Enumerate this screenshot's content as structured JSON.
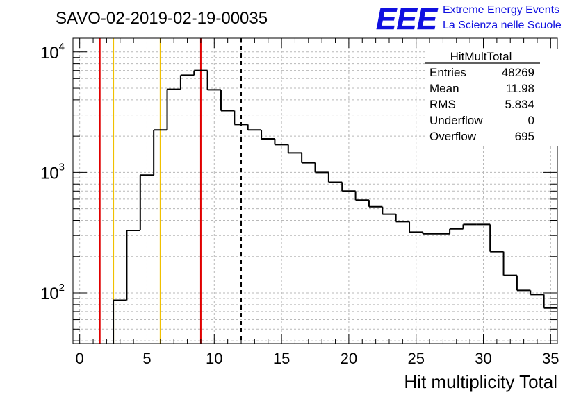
{
  "header": {
    "title": "SAVO-02-2019-02-19-00035",
    "logo_text": "EEE",
    "logo_line1": "Extreme Energy Events",
    "logo_line2": "La Scienza nelle Scuole",
    "logo_color": "#1010e0"
  },
  "stats": {
    "title": "HitMultTotal",
    "rows": [
      {
        "label": "Entries",
        "value": "48269"
      },
      {
        "label": "Mean",
        "value": "11.98"
      },
      {
        "label": "RMS",
        "value": "5.834"
      },
      {
        "label": "Underflow",
        "value": "0"
      },
      {
        "label": "Overflow",
        "value": "695"
      }
    ]
  },
  "chart_data": {
    "type": "histogram",
    "xlabel": "Hit multiplicity Total",
    "ylabel": "",
    "xlim": [
      -0.5,
      35.5
    ],
    "ylim": [
      38,
      13000
    ],
    "y_scale": "log",
    "grid": true,
    "x_ticks": [
      0,
      5,
      10,
      15,
      20,
      25,
      30,
      35
    ],
    "x_tick_labels": [
      "0",
      "5",
      "10",
      "15",
      "20",
      "25",
      "30",
      "35"
    ],
    "y_ticks": [
      100,
      1000,
      10000
    ],
    "y_tick_labels": [
      {
        "base": "10",
        "exp": "2"
      },
      {
        "base": "10",
        "exp": "3"
      },
      {
        "base": "10",
        "exp": "4"
      }
    ],
    "bin_edges": [
      -0.5,
      0.5,
      1.5,
      2.5,
      3.5,
      4.5,
      5.5,
      6.5,
      7.5,
      8.5,
      9.5,
      10.5,
      11.5,
      12.5,
      13.5,
      14.5,
      15.5,
      16.5,
      17.5,
      18.5,
      19.5,
      20.5,
      21.5,
      22.5,
      23.5,
      24.5,
      25.5,
      26.5,
      27.5,
      28.5,
      29.5,
      30.5,
      31.5,
      32.5,
      33.5,
      34.5,
      35.5
    ],
    "values": [
      0,
      0,
      0,
      87,
      330,
      950,
      2250,
      4900,
      6400,
      7000,
      4850,
      3250,
      2500,
      2250,
      1900,
      1700,
      1450,
      1200,
      1000,
      830,
      700,
      590,
      520,
      450,
      390,
      320,
      310,
      310,
      340,
      370,
      370,
      220,
      140,
      105,
      97,
      75
    ],
    "vertical_lines": [
      {
        "x": 1.5,
        "color": "#e00000",
        "style": "solid"
      },
      {
        "x": 2.5,
        "color": "#f0c000",
        "style": "solid"
      },
      {
        "x": 6.0,
        "color": "#f0c000",
        "style": "solid"
      },
      {
        "x": 9.0,
        "color": "#e00000",
        "style": "solid"
      },
      {
        "x": 12.0,
        "color": "#000000",
        "style": "dashed"
      }
    ]
  }
}
